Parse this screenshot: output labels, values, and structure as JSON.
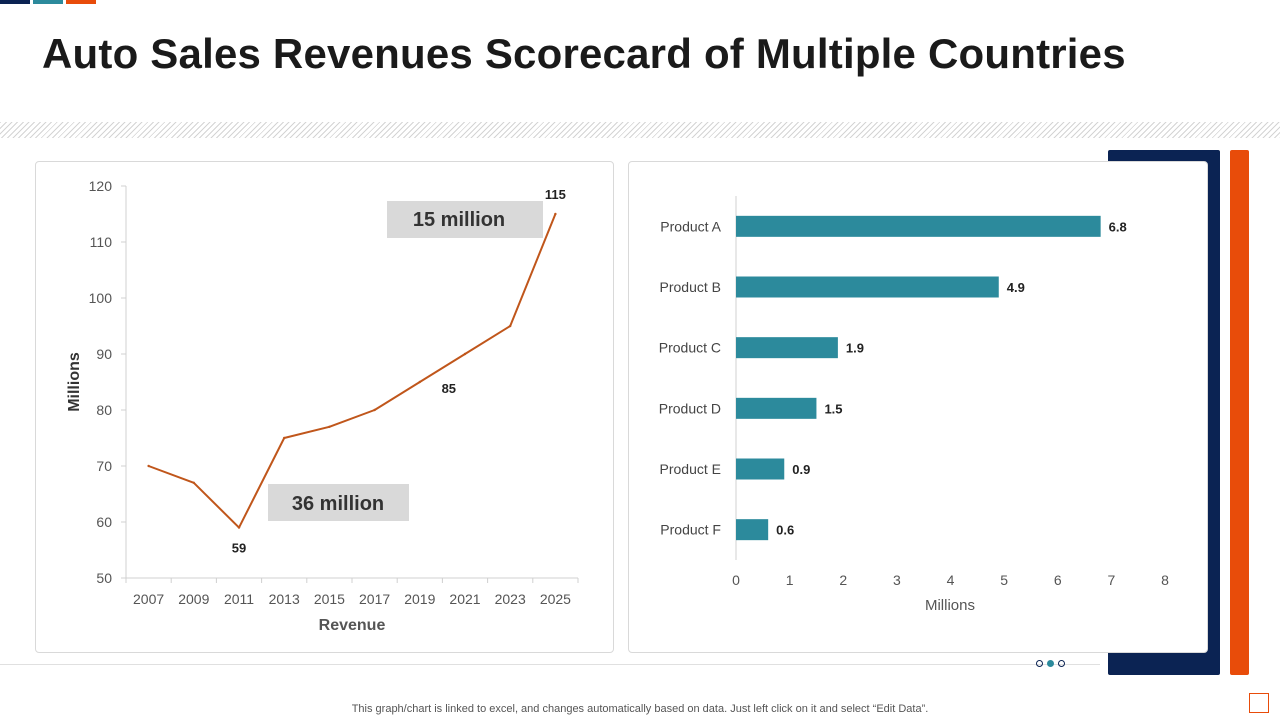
{
  "page": {
    "title": "Auto Sales Revenues Scorecard of Multiple Countries",
    "footnote": "This graph/chart is linked to excel,  and changes automatically based on data. Just left click on it and select “Edit Data”.",
    "colors": {
      "navy": "#0b2353",
      "teal": "#2c8a9c",
      "orange": "#e84c0a",
      "line": "#c0561b"
    }
  },
  "chart_data": [
    {
      "type": "line",
      "x": [
        "2007",
        "2009",
        "2011",
        "2013",
        "2015",
        "2017",
        "2019",
        "2021",
        "2023",
        "2025"
      ],
      "series": [
        {
          "values": [
            70,
            67,
            59,
            75,
            77,
            80,
            85,
            90,
            95,
            115
          ]
        }
      ],
      "data_labels": [
        {
          "x": "2011",
          "text": "59"
        },
        {
          "x": "2019",
          "text": "85"
        },
        {
          "x": "2025",
          "text": "115"
        }
      ],
      "yticks": [
        "50",
        "60",
        "70",
        "80",
        "90",
        "100",
        "110",
        "120"
      ],
      "ylim": [
        50,
        120
      ],
      "xlabel": "Revenue",
      "ylabel": "Millions",
      "annotations": [
        "15 million",
        "36 million"
      ],
      "grid": false
    },
    {
      "type": "bar",
      "orientation": "horizontal",
      "categories": [
        "Product A",
        "Product B",
        "Product C",
        "Product D",
        "Product E",
        "Product F"
      ],
      "values": [
        6.8,
        4.9,
        1.9,
        1.5,
        0.9,
        0.6
      ],
      "value_labels": [
        "6.8",
        "4.9",
        "1.9",
        "1.5",
        "0.9",
        "0.6"
      ],
      "xticks": [
        "0",
        "1",
        "2",
        "3",
        "4",
        "5",
        "6",
        "7",
        "8"
      ],
      "xlim": [
        0,
        8
      ],
      "xlabel": "Millions",
      "grid": false
    }
  ]
}
